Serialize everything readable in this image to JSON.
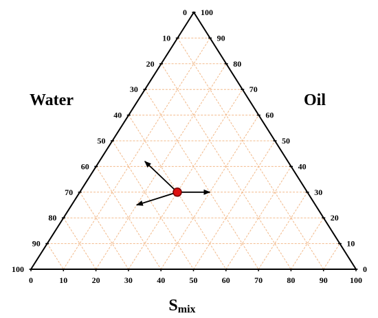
{
  "chart_data": {
    "type": "ternary",
    "axes": {
      "water": {
        "label": "Water",
        "ticks": [
          0,
          10,
          20,
          30,
          40,
          50,
          60,
          70,
          80,
          90,
          100
        ]
      },
      "oil": {
        "label": "Oil",
        "ticks": [
          0,
          10,
          20,
          30,
          40,
          50,
          60,
          70,
          80,
          90,
          100
        ]
      },
      "smix": {
        "label_main": "S",
        "label_sub": "mix",
        "ticks": [
          0,
          10,
          20,
          30,
          40,
          50,
          60,
          70,
          80,
          90,
          100
        ]
      }
    },
    "grid": true,
    "grid_step": 10,
    "point": {
      "water": 40,
      "oil": 30,
      "smix": 30
    },
    "arrows": [
      {
        "name": "increase-water",
        "to": {
          "water": 55,
          "oil": 25,
          "smix": 20
        }
      },
      {
        "name": "increase-oil",
        "to": {
          "water": 30,
          "oil": 30,
          "smix": 40
        }
      },
      {
        "name": "increase-smix",
        "to": {
          "water": 44,
          "oil": 42,
          "smix": 14
        }
      }
    ],
    "colors": {
      "grid": "#f2b98a",
      "frame": "#000000",
      "point_fill": "#dd1111",
      "point_stroke": "#7a0000",
      "arrow": "#000000"
    }
  }
}
